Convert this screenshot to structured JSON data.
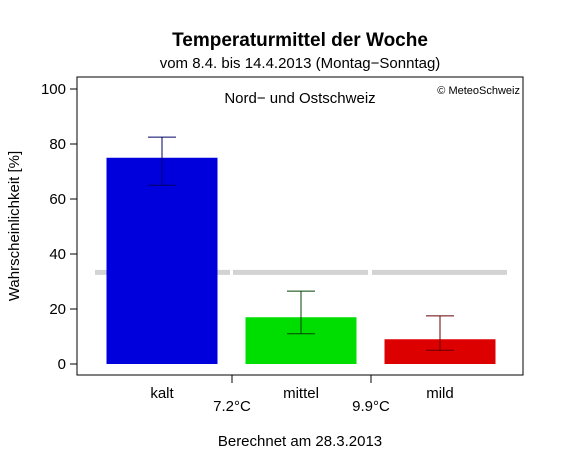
{
  "chart_data": {
    "type": "bar",
    "title": "Temperaturmittel der Woche",
    "subtitle": "vom 8.4. bis 14.4.2013 (Montag−Sonntag)",
    "region": "Nord− und Ostschweiz",
    "copyright": "© MeteoSchweiz",
    "ylabel": "Wahrscheinlichkeit [%]",
    "ylim": [
      0,
      100
    ],
    "yticks": [
      "0",
      "20",
      "40",
      "60",
      "80",
      "100"
    ],
    "yticks_values": [
      0,
      20,
      40,
      60,
      80,
      100
    ],
    "categories": [
      "kalt",
      "mittel",
      "mild"
    ],
    "values": [
      75,
      17,
      9
    ],
    "error_low": [
      65,
      11,
      5
    ],
    "error_high": [
      82.5,
      26.5,
      17.5
    ],
    "colors": [
      "#0000dd",
      "#00dd00",
      "#dd0000"
    ],
    "error_colors": [
      "#000066",
      "#004400",
      "#660000"
    ],
    "reference_line": 33.3,
    "reference_color": "#d3d3d3",
    "thresholds": [
      "7.2°C",
      "9.9°C"
    ],
    "footer": "Berechnet am 28.3.2013",
    "grid": false,
    "legend": "none"
  }
}
